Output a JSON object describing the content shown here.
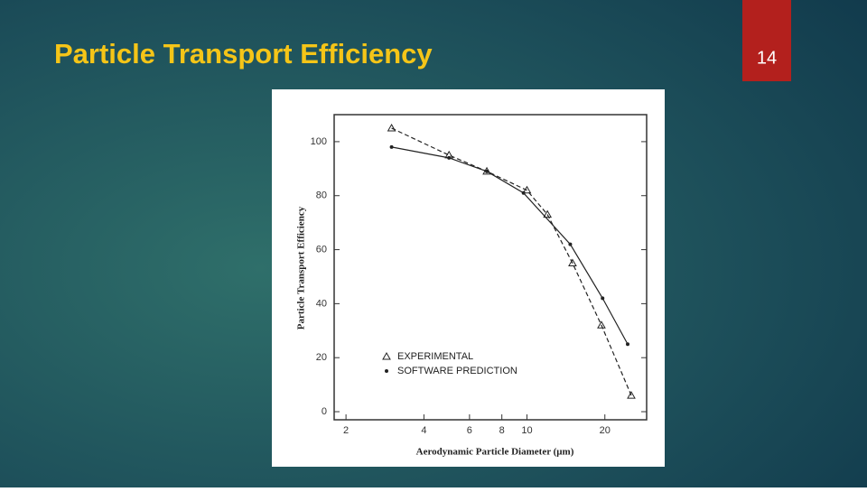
{
  "slide": {
    "title": "Particle Transport Efficiency",
    "page_number": "14"
  },
  "chart_data": {
    "type": "line",
    "x_label": "Aerodynamic Particle Diameter (μm)",
    "y_label": "Particle Transport Efficiency",
    "xscale": "log",
    "xlim": [
      1.8,
      29
    ],
    "ylim": [
      -3,
      110
    ],
    "xticks": [
      2,
      4,
      6,
      8,
      10,
      20
    ],
    "yticks": [
      0,
      20,
      40,
      60,
      80,
      100
    ],
    "legend": "lower left",
    "series": [
      {
        "name": "EXPERIMENTAL",
        "marker": "triangle",
        "dashed": true,
        "color": "#222222",
        "x": [
          3,
          5,
          7,
          10,
          12,
          15,
          19.4,
          25.3
        ],
        "values": [
          105,
          95,
          89,
          82,
          73,
          55,
          32,
          6
        ]
      },
      {
        "name": "SOFTWARE PREDICTION",
        "marker": "dot",
        "dashed": false,
        "color": "#222222",
        "x": [
          3,
          5,
          7,
          9.7,
          14.7,
          19.6,
          24.5
        ],
        "values": [
          98,
          94,
          89,
          81,
          62,
          42,
          25
        ]
      }
    ]
  }
}
